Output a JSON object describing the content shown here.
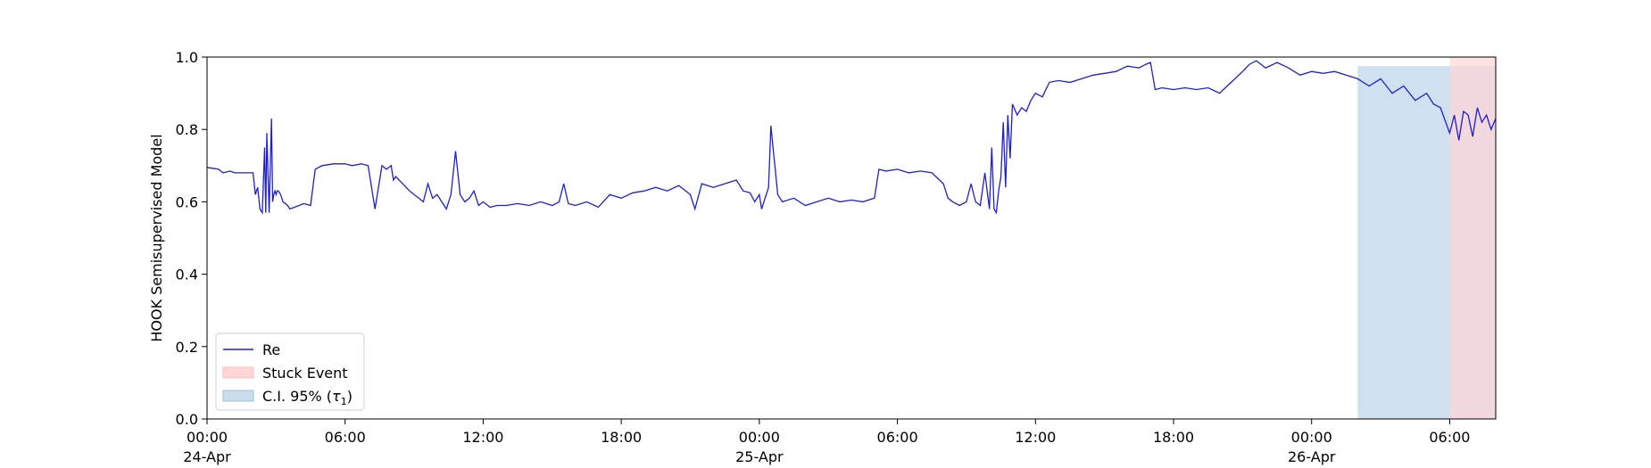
{
  "chart_data": {
    "type": "line",
    "title": "",
    "xlabel": "",
    "ylabel": "HOOK Semisupervised Model",
    "ylim": [
      0.0,
      1.0
    ],
    "xlim": [
      "1900-04-24 00:00",
      "1900-04-26 08:00"
    ],
    "grid": false,
    "legend_position": "lower-left",
    "colors": {
      "line": "#1f1fd0",
      "stuck": "#ffd6d6",
      "ci": "#a8c8e0"
    },
    "y_ticks": [
      "0.0",
      "0.2",
      "0.4",
      "0.6",
      "0.8",
      "1.0"
    ],
    "y_tick_values": [
      0.0,
      0.2,
      0.4,
      0.6,
      0.8,
      1.0
    ],
    "x_ticks": [
      {
        "hour": 0,
        "label": "00:00",
        "sub": "24-Apr",
        "sub2": "1900"
      },
      {
        "hour": 6,
        "label": "06:00",
        "sub": "",
        "sub2": ""
      },
      {
        "hour": 12,
        "label": "12:00",
        "sub": "",
        "sub2": ""
      },
      {
        "hour": 18,
        "label": "18:00",
        "sub": "",
        "sub2": ""
      },
      {
        "hour": 24,
        "label": "00:00",
        "sub": "25-Apr",
        "sub2": ""
      },
      {
        "hour": 30,
        "label": "06:00",
        "sub": "",
        "sub2": ""
      },
      {
        "hour": 36,
        "label": "12:00",
        "sub": "",
        "sub2": ""
      },
      {
        "hour": 42,
        "label": "18:00",
        "sub": "",
        "sub2": ""
      },
      {
        "hour": 48,
        "label": "00:00",
        "sub": "26-Apr",
        "sub2": ""
      },
      {
        "hour": 54,
        "label": "06:00",
        "sub": "",
        "sub2": ""
      }
    ],
    "legend": [
      {
        "kind": "line",
        "label": "Re"
      },
      {
        "kind": "stuck",
        "label": "Stuck Event"
      },
      {
        "kind": "ci",
        "label_prefix": "C.I. 95% (",
        "label_symbol": "τ",
        "label_sub": "1",
        "label_suffix": ")"
      }
    ],
    "ci_region": {
      "x_start_hour": 50.0,
      "x_end_hour": 56.0,
      "y_top": 0.975
    },
    "stuck_region": {
      "x_start_hour": 54.0,
      "x_end_hour": 56.0,
      "y_top": 1.0
    },
    "series": [
      {
        "name": "Re",
        "x_hours": [
          0,
          0.5,
          0.7,
          1,
          1.2,
          1.5,
          1.8,
          2,
          2.1,
          2.2,
          2.3,
          2.4,
          2.5,
          2.55,
          2.6,
          2.7,
          2.8,
          2.85,
          2.9,
          2.95,
          3.0,
          3.05,
          3.1,
          3.2,
          3.3,
          3.5,
          3.6,
          3.8,
          4.0,
          4.2,
          4.5,
          4.7,
          5.0,
          5.5,
          6,
          6.3,
          6.7,
          7,
          7.3,
          7.6,
          7.8,
          8.0,
          8.1,
          8.2,
          8.5,
          8.8,
          9,
          9.2,
          9.4,
          9.6,
          9.8,
          10,
          10.2,
          10.4,
          10.6,
          10.8,
          11,
          11.2,
          11.4,
          11.6,
          11.8,
          12,
          12.3,
          12.6,
          13,
          13.5,
          14,
          14.5,
          15,
          15.3,
          15.5,
          15.7,
          16,
          16.5,
          17,
          17.5,
          18,
          18.5,
          19,
          19.5,
          20,
          20.5,
          21,
          21.2,
          21.5,
          22,
          22.5,
          23,
          23.3,
          23.6,
          23.8,
          24,
          24.1,
          24.2,
          24.4,
          24.5,
          24.8,
          25,
          25.5,
          26,
          26.5,
          27,
          27.5,
          28,
          28.5,
          29,
          29.2,
          29.5,
          30,
          30.5,
          31,
          31.5,
          32,
          32.2,
          32.4,
          32.7,
          33,
          33.2,
          33.4,
          33.6,
          33.8,
          34,
          34.1,
          34.2,
          34.3,
          34.4,
          34.5,
          34.6,
          34.7,
          34.8,
          34.9,
          35,
          35.2,
          35.4,
          35.6,
          35.8,
          36,
          36.3,
          36.6,
          37,
          37.5,
          38,
          38.5,
          39,
          39.5,
          40,
          40.5,
          40.8,
          41,
          41.2,
          41.5,
          42,
          42.5,
          43,
          43.5,
          44,
          44.5,
          45,
          45.3,
          45.6,
          46,
          46.5,
          47,
          47.5,
          48,
          48.5,
          49,
          49.5,
          50,
          50.5,
          51,
          51.5,
          52,
          52.5,
          53,
          53.3,
          53.6,
          54,
          54.2,
          54.4,
          54.6,
          54.8,
          55,
          55.2,
          55.4,
          55.6,
          55.8,
          56
        ],
        "values": [
          0.695,
          0.69,
          0.68,
          0.685,
          0.68,
          0.68,
          0.68,
          0.68,
          0.62,
          0.64,
          0.58,
          0.57,
          0.75,
          0.57,
          0.79,
          0.57,
          0.83,
          0.6,
          0.62,
          0.63,
          0.62,
          0.63,
          0.63,
          0.62,
          0.6,
          0.59,
          0.58,
          0.585,
          0.59,
          0.595,
          0.59,
          0.69,
          0.7,
          0.705,
          0.705,
          0.7,
          0.705,
          0.7,
          0.58,
          0.7,
          0.69,
          0.7,
          0.66,
          0.67,
          0.65,
          0.63,
          0.62,
          0.61,
          0.6,
          0.65,
          0.61,
          0.62,
          0.6,
          0.58,
          0.62,
          0.74,
          0.62,
          0.6,
          0.61,
          0.63,
          0.59,
          0.6,
          0.585,
          0.59,
          0.59,
          0.595,
          0.59,
          0.6,
          0.59,
          0.6,
          0.65,
          0.595,
          0.59,
          0.6,
          0.585,
          0.62,
          0.61,
          0.625,
          0.63,
          0.64,
          0.63,
          0.645,
          0.62,
          0.58,
          0.65,
          0.64,
          0.65,
          0.66,
          0.63,
          0.625,
          0.6,
          0.62,
          0.58,
          0.6,
          0.64,
          0.81,
          0.62,
          0.6,
          0.61,
          0.59,
          0.6,
          0.61,
          0.6,
          0.605,
          0.6,
          0.61,
          0.69,
          0.685,
          0.69,
          0.68,
          0.685,
          0.68,
          0.65,
          0.61,
          0.6,
          0.59,
          0.6,
          0.65,
          0.6,
          0.59,
          0.68,
          0.58,
          0.75,
          0.58,
          0.57,
          0.63,
          0.67,
          0.82,
          0.64,
          0.84,
          0.72,
          0.87,
          0.84,
          0.86,
          0.85,
          0.88,
          0.9,
          0.89,
          0.93,
          0.935,
          0.93,
          0.94,
          0.95,
          0.955,
          0.96,
          0.975,
          0.97,
          0.98,
          0.985,
          0.91,
          0.915,
          0.91,
          0.915,
          0.91,
          0.915,
          0.9,
          0.93,
          0.96,
          0.98,
          0.99,
          0.97,
          0.985,
          0.97,
          0.95,
          0.96,
          0.955,
          0.96,
          0.95,
          0.94,
          0.92,
          0.94,
          0.9,
          0.92,
          0.88,
          0.9,
          0.87,
          0.86,
          0.79,
          0.84,
          0.77,
          0.85,
          0.84,
          0.78,
          0.86,
          0.82,
          0.84,
          0.8,
          0.83
        ]
      }
    ]
  }
}
